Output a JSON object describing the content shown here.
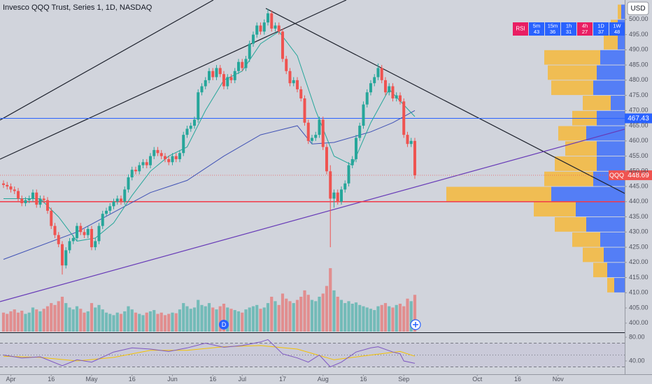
{
  "chart_data": {
    "type": "candlestick",
    "title": "Invesco QQQ Trust, Series 1, 1D, NASDAQ",
    "currency": "USD",
    "symbol": "QQQ",
    "up_color": "#26a69a",
    "down_color": "#ef5350",
    "open": [
      446,
      445.5,
      445,
      444,
      443.5,
      441,
      439.5,
      440.5,
      441,
      443,
      439,
      441,
      440.5,
      437,
      432,
      429,
      426,
      419,
      424,
      427,
      428,
      432,
      430,
      429,
      431,
      425,
      427,
      432,
      436,
      437,
      438.5,
      440,
      441,
      440,
      444,
      448,
      450.5,
      450,
      452,
      453,
      452,
      455,
      457,
      456,
      455,
      454,
      453,
      455,
      454,
      456,
      462,
      464,
      465,
      467,
      476,
      478,
      480,
      483,
      481,
      484,
      482,
      478,
      481,
      480,
      483,
      486,
      484,
      487,
      492,
      495,
      498,
      496,
      499,
      502,
      497,
      498,
      496,
      487,
      483,
      479,
      480,
      477,
      474,
      466,
      460,
      461,
      462,
      467,
      458,
      450,
      441,
      443,
      440,
      444,
      446,
      452,
      454,
      461,
      465,
      472,
      476,
      479,
      481,
      484,
      480,
      476,
      478,
      474,
      475,
      473,
      462,
      459,
      460
    ],
    "high": [
      447,
      446.5,
      446,
      445,
      444.5,
      442,
      441.5,
      442,
      444,
      444,
      442,
      442,
      441.5,
      438,
      433,
      430,
      427,
      425,
      428,
      429,
      433,
      433,
      431,
      432,
      432,
      428,
      433,
      437,
      438,
      439.5,
      441,
      442,
      442,
      445,
      449,
      451.5,
      451.5,
      453,
      454,
      454,
      456,
      458,
      458,
      457,
      456,
      455,
      456,
      456,
      457,
      463,
      465,
      466,
      468,
      477,
      479,
      481,
      484,
      484,
      485,
      485,
      483,
      482,
      482,
      484,
      487,
      487,
      488,
      493,
      496,
      499,
      499,
      500,
      503.5,
      503,
      499,
      499,
      497,
      488,
      484,
      481,
      481,
      478,
      475,
      467,
      462,
      463,
      468,
      468,
      459,
      452,
      444,
      444,
      445,
      447,
      453,
      455,
      462,
      466,
      473,
      477,
      480,
      482,
      485.5,
      485,
      481,
      479,
      479,
      476,
      476,
      474,
      463,
      461,
      461
    ],
    "low": [
      444.5,
      444,
      443,
      442.5,
      440,
      438.5,
      438.5,
      439.5,
      440,
      438,
      438,
      439.5,
      436,
      431,
      428,
      425,
      416,
      418,
      423,
      426,
      427,
      429,
      428,
      428,
      424,
      424,
      426,
      431,
      435,
      436,
      437.5,
      439,
      439,
      439,
      443,
      447,
      449,
      449,
      451,
      451,
      451,
      454,
      455,
      454,
      453,
      452,
      452,
      453,
      453,
      455,
      461,
      463,
      464,
      466,
      475,
      477,
      479,
      480,
      480,
      481,
      477,
      477,
      479,
      479,
      482,
      483,
      483,
      486,
      491,
      494,
      495,
      495,
      498,
      496,
      496,
      495,
      486,
      482,
      478,
      478,
      476,
      473,
      465,
      459,
      459,
      460,
      461,
      457,
      449,
      425,
      438,
      439,
      439,
      443,
      445,
      451,
      453,
      460,
      464,
      471,
      475,
      478,
      480,
      479,
      475,
      475,
      473,
      473,
      472,
      461,
      458,
      458,
      447.5
    ],
    "close": [
      445.5,
      445,
      444,
      443.5,
      441,
      439.5,
      440.5,
      441,
      443,
      439,
      441,
      440.5,
      437,
      432,
      429,
      426,
      419,
      424,
      427,
      428,
      432,
      430,
      429,
      431,
      425,
      427,
      432,
      436,
      437,
      438.5,
      440,
      441,
      440,
      444,
      448,
      450.5,
      450,
      452,
      453,
      452,
      455,
      457,
      456,
      455,
      454,
      453,
      455,
      454,
      456,
      462,
      464,
      465,
      467,
      476,
      478,
      480,
      483,
      481,
      484,
      482,
      478,
      481,
      480,
      483,
      486,
      484,
      487,
      492,
      495,
      498,
      496,
      499,
      502,
      497,
      498,
      496,
      487,
      483,
      479,
      480,
      477,
      474,
      466,
      460,
      461,
      462,
      467,
      458,
      450,
      441,
      443,
      440,
      444,
      446,
      452,
      454,
      461,
      465,
      472,
      476,
      479,
      481,
      484,
      480,
      476,
      478,
      474,
      475,
      473,
      462,
      459,
      460,
      448.69
    ],
    "volume": [
      30,
      28,
      32,
      35,
      30,
      33,
      28,
      30,
      38,
      35,
      32,
      36,
      40,
      45,
      42,
      48,
      55,
      45,
      38,
      35,
      40,
      36,
      30,
      32,
      45,
      38,
      42,
      35,
      30,
      28,
      26,
      30,
      28,
      32,
      40,
      35,
      30,
      28,
      26,
      30,
      32,
      34,
      28,
      30,
      26,
      28,
      30,
      29,
      35,
      45,
      40,
      36,
      38,
      50,
      42,
      40,
      45,
      38,
      35,
      40,
      44,
      38,
      36,
      34,
      32,
      30,
      35,
      38,
      40,
      42,
      36,
      38,
      45,
      55,
      48,
      42,
      60,
      52,
      48,
      45,
      50,
      55,
      65,
      58,
      50,
      48,
      55,
      60,
      72,
      100,
      65,
      55,
      50,
      45,
      48,
      44,
      46,
      42,
      40,
      38,
      36,
      34,
      40,
      42,
      45,
      40,
      38,
      42,
      44,
      40,
      52,
      48,
      58
    ],
    "volume_lim": [
      0,
      110
    ],
    "xlim": [
      -0.95,
      169.15
    ],
    "xticks": [
      {
        "value": 2,
        "label": "Apr"
      },
      {
        "value": 13,
        "label": "16"
      },
      {
        "value": 24,
        "label": "May"
      },
      {
        "value": 35,
        "label": "16"
      },
      {
        "value": 46,
        "label": "Jun"
      },
      {
        "value": 57,
        "label": "16"
      },
      {
        "value": 65,
        "label": "Jul"
      },
      {
        "value": 76,
        "label": "17"
      },
      {
        "value": 87,
        "label": "Aug"
      },
      {
        "value": 98,
        "label": "16"
      },
      {
        "value": 109,
        "label": "Sep"
      },
      {
        "value": 129,
        "label": "Oct"
      },
      {
        "value": 140,
        "label": "16"
      },
      {
        "value": 151,
        "label": "Nov"
      }
    ],
    "ylim": [
      397.2,
      506.4
    ],
    "yticks": [
      {
        "value": 400,
        "label": "400.00"
      },
      {
        "value": 405,
        "label": "405.00"
      },
      {
        "value": 410,
        "label": "410.00"
      },
      {
        "value": 415,
        "label": "415.00"
      },
      {
        "value": 420,
        "label": "420.00"
      },
      {
        "value": 425,
        "label": "425.00"
      },
      {
        "value": 430,
        "label": "430.00"
      },
      {
        "value": 435,
        "label": "435.00"
      },
      {
        "value": 440,
        "label": "440.00"
      },
      {
        "value": 445,
        "label": "445.00"
      },
      {
        "value": 450,
        "label": "450.00"
      },
      {
        "value": 455,
        "label": "455.00"
      },
      {
        "value": 460,
        "label": "460.00"
      },
      {
        "value": 465,
        "label": "465.00"
      },
      {
        "value": 470,
        "label": "470.00"
      },
      {
        "value": 475,
        "label": "475.00"
      },
      {
        "value": 480,
        "label": "480.00"
      },
      {
        "value": 485,
        "label": "485.00"
      },
      {
        "value": 490,
        "label": "490.00"
      },
      {
        "value": 495,
        "label": "495.00"
      },
      {
        "value": 500,
        "label": "500.00"
      }
    ],
    "moving_averages": [
      {
        "color": "#3f51b5",
        "x": [
          0,
          20,
          40,
          50,
          60,
          70,
          80,
          84,
          90,
          100,
          106,
          112
        ],
        "values": [
          421,
          430,
          443,
          447,
          455,
          462,
          465,
          459,
          459.5,
          463,
          466,
          470
        ]
      },
      {
        "color": "#26a69a",
        "x": [
          0,
          10,
          15,
          20,
          25,
          30,
          35,
          40,
          45,
          50,
          55,
          60,
          65,
          70,
          75,
          80,
          85,
          90,
          95,
          100,
          105,
          112
        ],
        "values": [
          441,
          441,
          435,
          427,
          428,
          433,
          442,
          450,
          455,
          458,
          470,
          480,
          483,
          492,
          496,
          488,
          470,
          455,
          452,
          466,
          477,
          468
        ]
      }
    ],
    "price_levels": [
      {
        "value": 467.43,
        "color": "#2962ff",
        "labeled": true
      },
      {
        "value": 440,
        "color": "#f23645",
        "labeled": false
      }
    ],
    "events": [
      {
        "label": "D",
        "x": 60
      }
    ],
    "volume_profile": {
      "bins": [
        410,
        415,
        420,
        425,
        430,
        435,
        440,
        445,
        450,
        455,
        460,
        465,
        470,
        475,
        480,
        485,
        490,
        495,
        500,
        505
      ],
      "up": [
        10,
        20,
        30,
        40,
        45,
        60,
        150,
        70,
        60,
        45,
        40,
        35,
        40,
        60,
        70,
        80,
        20,
        10,
        5
      ],
      "down": [
        15,
        25,
        30,
        35,
        55,
        70,
        105,
        45,
        40,
        40,
        55,
        40,
        20,
        45,
        40,
        35,
        10,
        10,
        5
      ],
      "up_color": "#f7b731",
      "down_color": "#2962ff",
      "lim": [
        0,
        300
      ]
    },
    "rsi_pane": {
      "x": [
        0,
        5,
        10,
        16,
        20,
        24,
        30,
        35,
        40,
        45,
        50,
        55,
        60,
        65,
        70,
        72,
        76,
        80,
        83,
        86,
        89,
        92,
        96,
        100,
        102,
        106,
        108,
        109,
        112
      ],
      "values": [
        50,
        45,
        47,
        32,
        42,
        38,
        55,
        62,
        60,
        56,
        62,
        70,
        63,
        66,
        72,
        76,
        52,
        45,
        38,
        50,
        30,
        38,
        55,
        62,
        64,
        55,
        52,
        40,
        36
      ],
      "color": "#7e57c2",
      "ma_x": [
        0,
        10,
        20,
        30,
        40,
        50,
        60,
        70,
        80,
        90,
        100,
        108,
        112
      ],
      "ma_values": [
        48,
        46,
        40,
        46,
        58,
        58,
        64,
        66,
        60,
        42,
        50,
        56,
        48
      ],
      "ma_color": "#f5c200",
      "ylim": [
        17.6,
        85.9
      ],
      "yticks": [
        {
          "value": 80,
          "label": "80.00"
        },
        {
          "value": 40,
          "label": "40.00"
        }
      ],
      "bands": [
        70,
        50,
        30
      ]
    },
    "rsi_table": {
      "label": "RSI",
      "label_color": "#e91e63",
      "cells": [
        {
          "timeframe": "5m",
          "value": 43,
          "color": "#2962ff"
        },
        {
          "timeframe": "15m",
          "value": 36,
          "color": "#2962ff"
        },
        {
          "timeframe": "1h",
          "value": 31,
          "color": "#2962ff"
        },
        {
          "timeframe": "4h",
          "value": 27,
          "color": "#e91e63"
        },
        {
          "timeframe": "1D",
          "value": 37,
          "color": "#2962ff"
        },
        {
          "timeframe": "1W",
          "value": 48,
          "color": "#2962ff"
        }
      ]
    }
  }
}
